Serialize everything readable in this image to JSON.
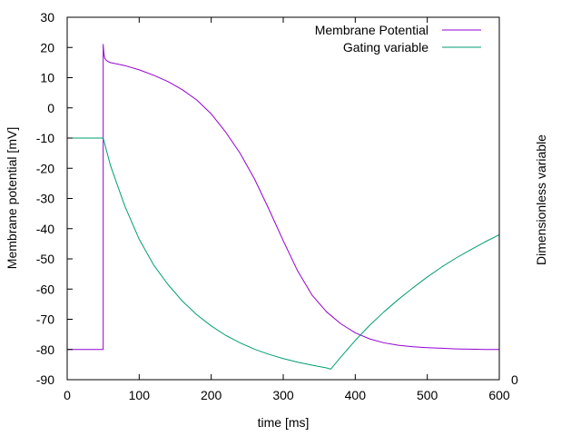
{
  "chart_data": {
    "type": "line",
    "xlabel": "time [ms]",
    "ylabel": "Membrane potential [mV]",
    "y2label": "Dimensionless variable",
    "xlim": [
      0,
      600
    ],
    "ylim": [
      -90,
      30
    ],
    "xticks": [
      "0",
      "100",
      "200",
      "300",
      "400",
      "500",
      "600"
    ],
    "xtick_values": [
      0,
      100,
      200,
      300,
      400,
      500,
      600
    ],
    "yticks": [
      "30",
      "20",
      "10",
      "0",
      "-10",
      "-20",
      "-30",
      "-40",
      "-50",
      "-60",
      "-70",
      "-80",
      "-90"
    ],
    "ytick_values": [
      30,
      20,
      10,
      0,
      -10,
      -20,
      -30,
      -40,
      -50,
      -60,
      -70,
      -80,
      -90
    ],
    "y2ticks": [
      "0"
    ],
    "y2tick_values": [
      -90
    ],
    "grid": false,
    "legend_position": "top-right",
    "series": [
      {
        "name": "Membrane Potential",
        "color": "#9400d3",
        "x": [
          0,
          50,
          50,
          51,
          52,
          54,
          57,
          60,
          80,
          100,
          120,
          140,
          160,
          180,
          200,
          220,
          240,
          260,
          280,
          300,
          320,
          340,
          360,
          380,
          400,
          420,
          440,
          460,
          480,
          500,
          520,
          540,
          560,
          580,
          600
        ],
        "y": [
          -80,
          -80,
          21,
          18,
          16.5,
          15.8,
          15.3,
          15,
          14,
          12.6,
          10.8,
          8.7,
          6,
          2.6,
          -2,
          -8,
          -15,
          -23.5,
          -33.5,
          -44,
          -54,
          -62,
          -67.5,
          -71.5,
          -74.5,
          -76.5,
          -77.8,
          -78.6,
          -79.1,
          -79.4,
          -79.6,
          -79.8,
          -79.9,
          -80,
          -80
        ]
      },
      {
        "name": "Gating variable",
        "color": "#009e73",
        "x": [
          0,
          50,
          60,
          80,
          100,
          120,
          140,
          160,
          180,
          200,
          220,
          240,
          260,
          280,
          300,
          320,
          340,
          360,
          366,
          380,
          400,
          420,
          440,
          460,
          480,
          500,
          520,
          540,
          560,
          580,
          600
        ],
        "y": [
          -10,
          -10,
          -19,
          -32.5,
          -43.5,
          -52,
          -58.5,
          -64,
          -68.5,
          -72.2,
          -75.3,
          -77.8,
          -79.9,
          -81.6,
          -83,
          -84.2,
          -85.2,
          -86.1,
          -86.5,
          -82.5,
          -77,
          -72,
          -67.5,
          -63.4,
          -59.6,
          -56,
          -52.7,
          -49.7,
          -47,
          -44.4,
          -42
        ]
      }
    ]
  }
}
